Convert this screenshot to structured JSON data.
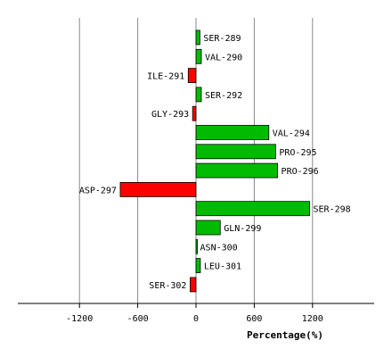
{
  "chart_data": {
    "type": "bar",
    "orientation": "horizontal",
    "xlabel": "Percentage(%)",
    "xlim": [
      -1850,
      1850
    ],
    "xticks": [
      -1200,
      -600,
      0,
      600,
      1200
    ],
    "grid": true,
    "colors": {
      "positive": "#00bb00",
      "negative": "#ff0000",
      "outline": "#000000",
      "grid": "#888888"
    },
    "categories": [
      "SER-289",
      "VAL-290",
      "ILE-291",
      "SER-292",
      "GLY-293",
      "VAL-294",
      "PRO-295",
      "PRO-296",
      "ASP-297",
      "SER-298",
      "GLN-299",
      "ASN-300",
      "LEU-301",
      "SER-302"
    ],
    "values": [
      40,
      55,
      -80,
      55,
      -35,
      750,
      820,
      840,
      -780,
      1170,
      250,
      5,
      45,
      -60
    ]
  }
}
